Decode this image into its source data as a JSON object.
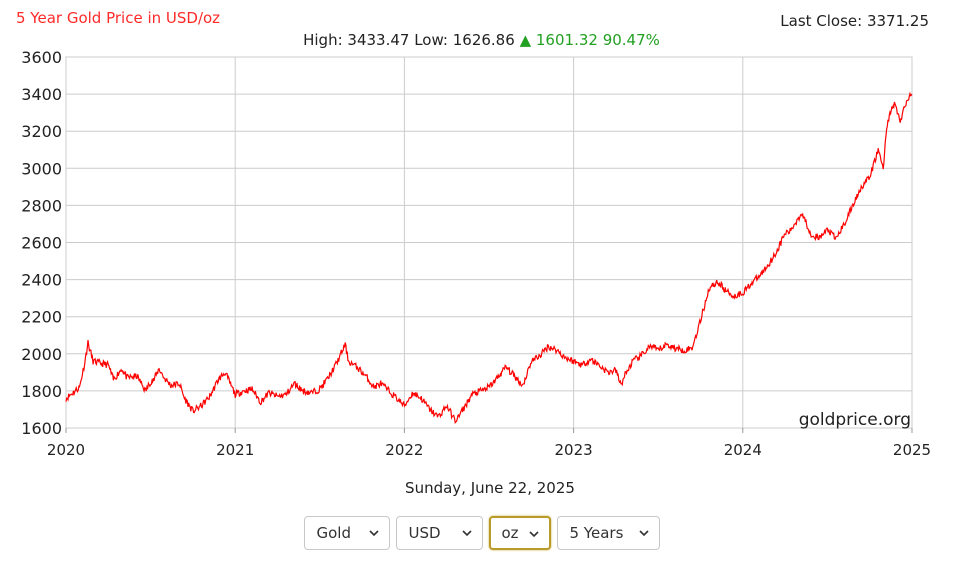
{
  "header": {
    "title": "5 Year Gold Price in USD/oz",
    "last_close": "Last Close: 3371.25",
    "high_low": "High: 3433.47 Low: 1626.86",
    "change_arrow": "▲",
    "change": "1601.32 90.47%"
  },
  "watermark": "goldprice.org",
  "date_label": "Sunday, June 22, 2025",
  "controls": {
    "metal": "Gold",
    "currency": "USD",
    "unit": "oz",
    "period": "5 Years"
  },
  "colors": {
    "line": "#ff0000",
    "title": "#ff2a2a",
    "up": "#22a022",
    "grid": "#cccccc"
  },
  "icons": {
    "dropdown": "chevron-down-icon"
  },
  "chart_data": {
    "type": "line",
    "grid": true,
    "ylim": [
      1600,
      3600
    ],
    "xlim": [
      2020,
      2025
    ],
    "yticks": [
      1600,
      1800,
      2000,
      2200,
      2400,
      2600,
      2800,
      3000,
      3200,
      3400,
      3600
    ],
    "xticks": [
      "2020",
      "2021",
      "2022",
      "2023",
      "2024",
      "2025"
    ],
    "series": [
      {
        "x": [
          2020.0,
          2020.04,
          2020.08,
          2020.11,
          2020.13,
          2020.16,
          2020.2,
          2020.25,
          2020.28,
          2020.33,
          2020.36,
          2020.42,
          2020.47,
          2020.5,
          2020.52,
          2020.55,
          2020.58,
          2020.62,
          2020.67,
          2020.7,
          2020.75,
          2020.8,
          2020.85,
          2020.9,
          2020.94,
          2021.0,
          2021.05,
          2021.1,
          2021.15,
          2021.2,
          2021.25,
          2021.3,
          2021.35,
          2021.4,
          2021.45,
          2021.5,
          2021.55,
          2021.6,
          2021.65,
          2021.67,
          2021.7,
          2021.73,
          2021.78,
          2021.82,
          2021.86,
          2021.92,
          2022.0,
          2022.05,
          2022.1,
          2022.15,
          2022.2,
          2022.25,
          2022.3,
          2022.32,
          2022.36,
          2022.4,
          2022.45,
          2022.5,
          2022.55,
          2022.6,
          2022.65,
          2022.7,
          2022.75,
          2022.8,
          2022.85,
          2022.9,
          2022.95,
          2023.0,
          2023.05,
          2023.1,
          2023.15,
          2023.2,
          2023.25,
          2023.28,
          2023.3,
          2023.35,
          2023.4,
          2023.45,
          2023.5,
          2023.55,
          2023.6,
          2023.65,
          2023.7,
          2023.75,
          2023.8,
          2023.85,
          2023.9,
          2023.95,
          2024.0,
          2024.05,
          2024.1,
          2024.15,
          2024.2,
          2024.25,
          2024.28,
          2024.32,
          2024.35,
          2024.4,
          2024.45,
          2024.5,
          2024.55,
          2024.6,
          2024.65,
          2024.7,
          2024.75,
          2024.8,
          2024.83,
          2024.85,
          2024.87,
          2024.9,
          2024.93,
          2024.96,
          2024.98,
          2025.0
        ],
        "y": [
          1760,
          1790,
          1820,
          1950,
          2060,
          1960,
          1950,
          1940,
          1860,
          1920,
          1870,
          1880,
          1800,
          1850,
          1860,
          1920,
          1870,
          1830,
          1840,
          1760,
          1690,
          1720,
          1770,
          1860,
          1900,
          1780,
          1800,
          1810,
          1740,
          1790,
          1770,
          1780,
          1840,
          1800,
          1790,
          1810,
          1870,
          1950,
          2050,
          1960,
          1940,
          1920,
          1870,
          1820,
          1840,
          1790,
          1720,
          1790,
          1760,
          1700,
          1660,
          1720,
          1640,
          1660,
          1720,
          1780,
          1800,
          1820,
          1870,
          1930,
          1880,
          1830,
          1960,
          1990,
          2040,
          2020,
          1980,
          1960,
          1940,
          1970,
          1940,
          1900,
          1910,
          1830,
          1880,
          1960,
          1990,
          2040,
          2020,
          2050,
          2030,
          2020,
          2030,
          2180,
          2350,
          2390,
          2340,
          2310,
          2330,
          2380,
          2420,
          2480,
          2550,
          2650,
          2660,
          2720,
          2760,
          2650,
          2620,
          2670,
          2620,
          2700,
          2800,
          2900,
          2950,
          3100,
          3000,
          3220,
          3300,
          3350,
          3250,
          3340,
          3380,
          3400
        ]
      }
    ]
  }
}
